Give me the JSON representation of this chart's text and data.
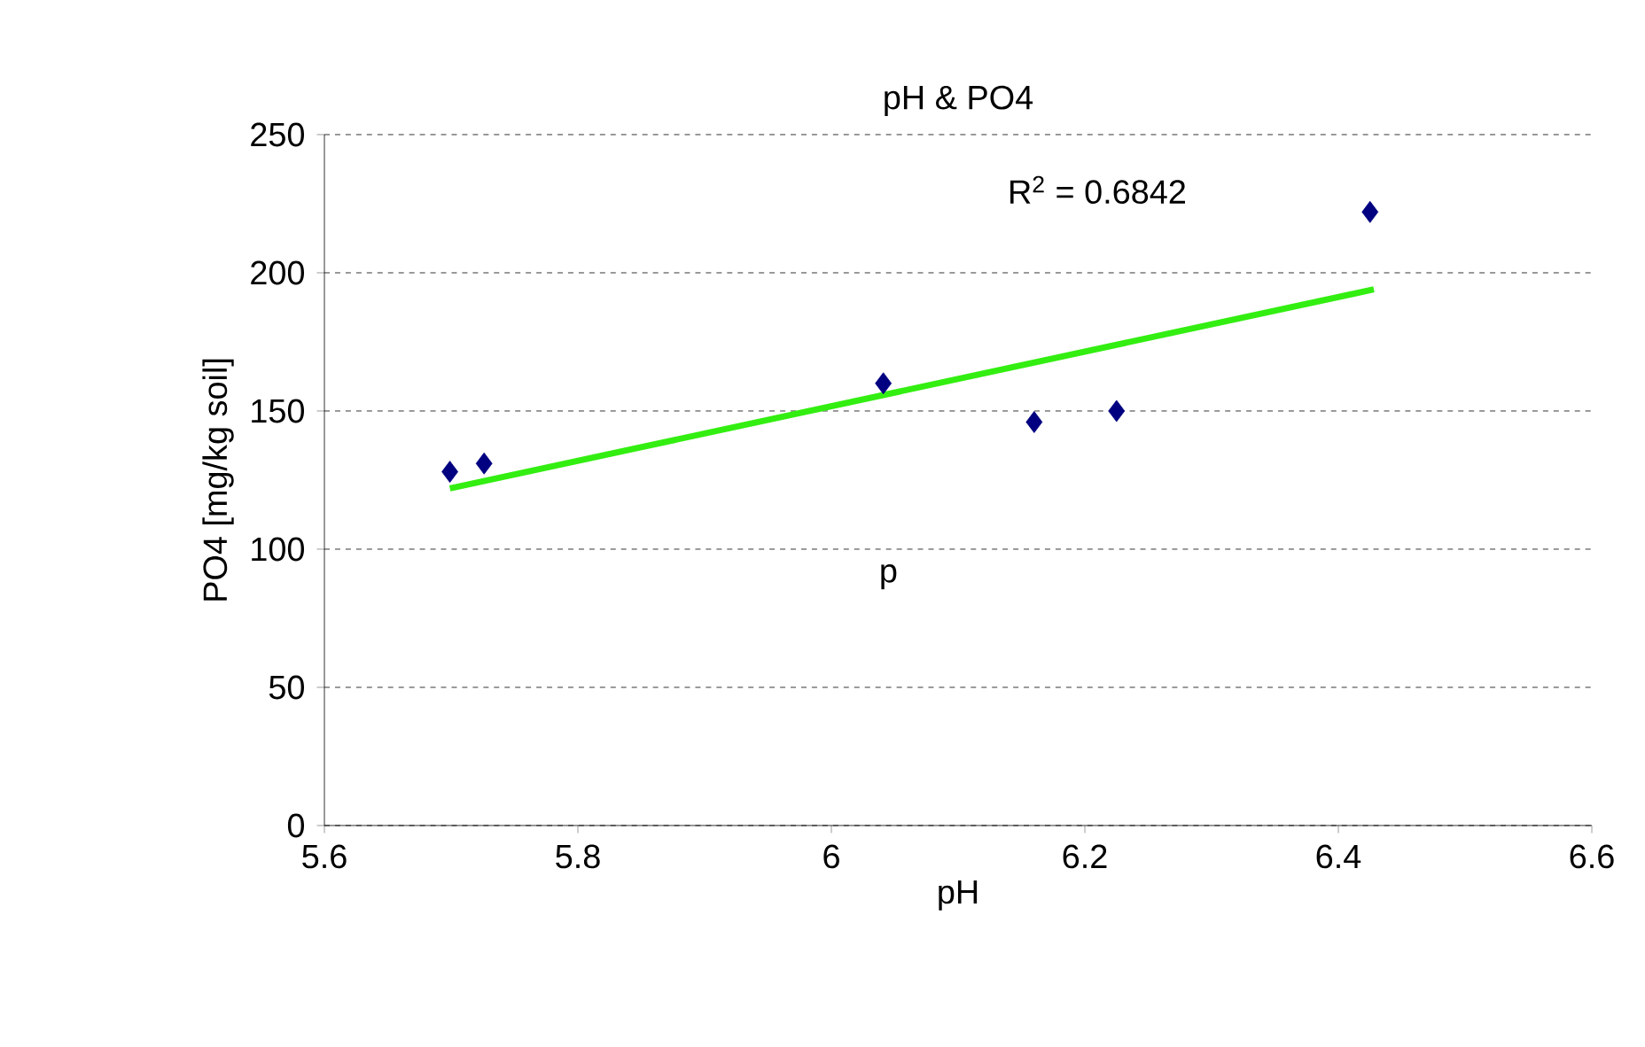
{
  "chart_data": {
    "type": "scatter",
    "title": "pH & PO4",
    "xlabel": "pH",
    "ylabel": "PO4 [mg/kg soil]",
    "xlim": [
      5.6,
      6.6
    ],
    "xticks": [
      5.6,
      5.8,
      6,
      6.2,
      6.4,
      6.6
    ],
    "ylim": [
      0,
      250
    ],
    "yticks": [
      0,
      50,
      100,
      150,
      200,
      250
    ],
    "grid": "y",
    "marker": "diamond",
    "series": [
      {
        "x": [
          5.699,
          5.726,
          6.041,
          6.16,
          6.225,
          6.425
        ],
        "values": [
          128,
          131,
          160,
          146,
          150,
          222
        ],
        "color": "#000080"
      },
      {
        "type": "line",
        "x": [
          5.699,
          6.428
        ],
        "values": [
          122,
          194
        ],
        "color": "#33ee11",
        "marker": "none"
      }
    ],
    "annotations": [
      "R$^{2}$ = 0.6842",
      "p"
    ]
  }
}
